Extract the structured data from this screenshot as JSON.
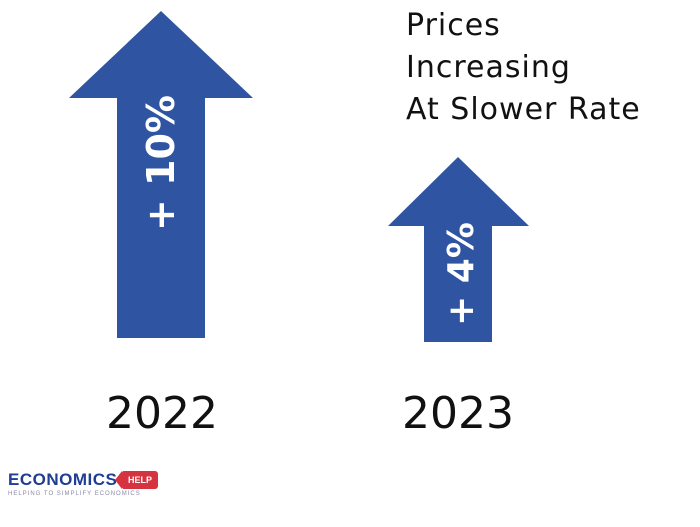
{
  "title": {
    "lines": [
      "Prices",
      "Increasing",
      "At Slower Rate"
    ]
  },
  "arrows": [
    {
      "label": "+ 10%",
      "year": "2022"
    },
    {
      "label": "+ 4%",
      "year": "2023"
    }
  ],
  "logo": {
    "word": "ECONOMICS",
    "tag": "HELP",
    "tagline": "HELPING TO SIMPLIFY ECONOMICS"
  },
  "colors": {
    "arrow": "#2f55a2",
    "text": "#111111",
    "logo_blue": "#1f3d91",
    "logo_red": "#d4333f"
  }
}
